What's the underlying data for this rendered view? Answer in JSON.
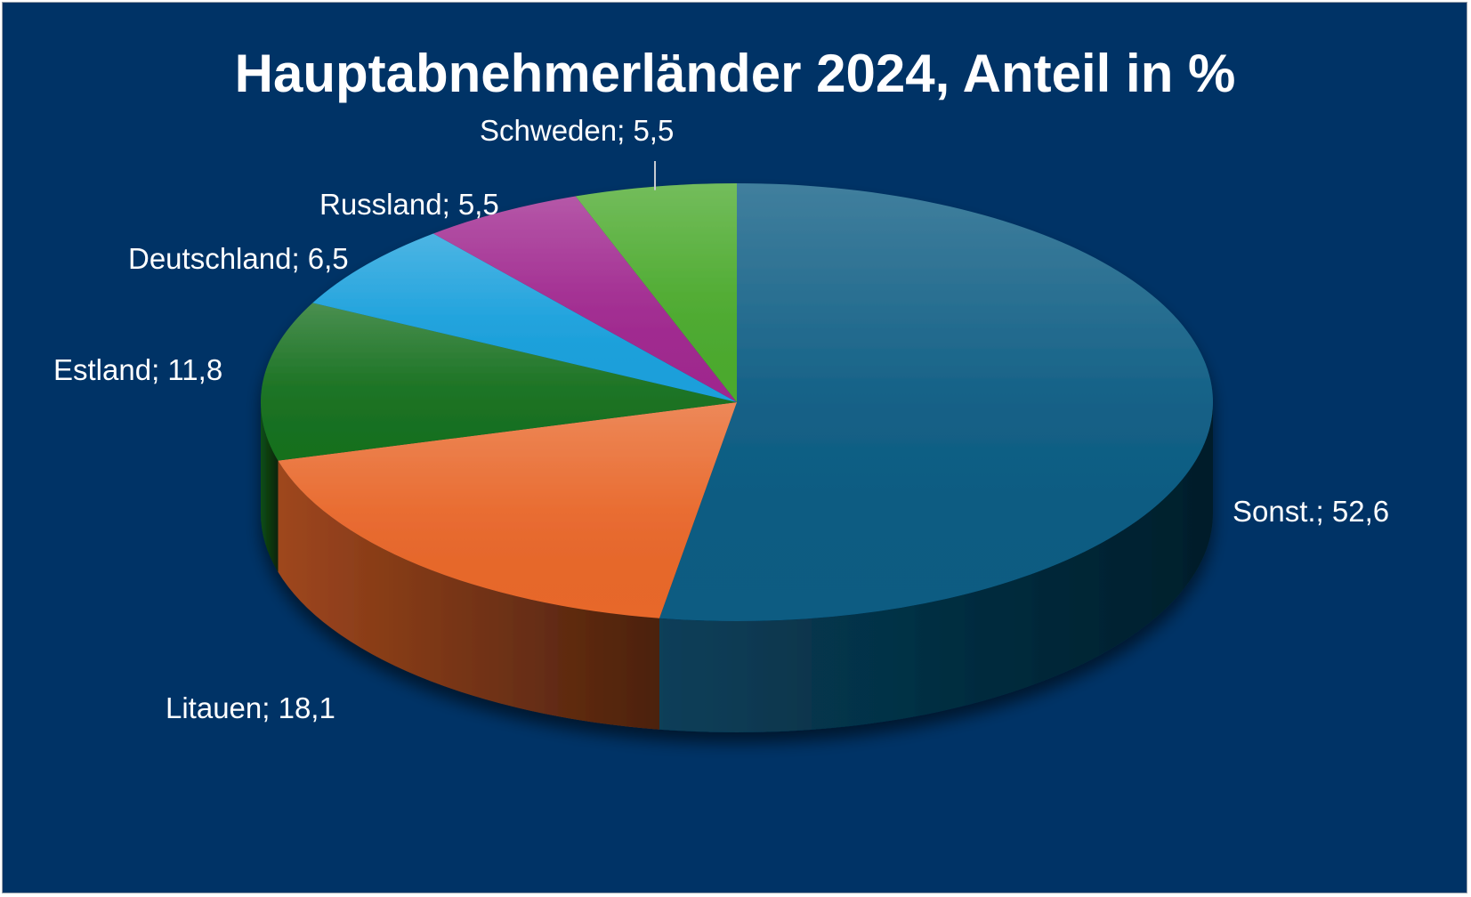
{
  "chart_data": {
    "type": "pie",
    "title": "Hauptabnehmerländer 2024, Anteil in %",
    "three_d": true,
    "legend": "none",
    "start_angle": "12 o'clock",
    "direction": "clockwise",
    "slices": [
      {
        "name": "Sonst.",
        "value": 52.6,
        "label": "Sonst.; 52,6",
        "color": "#0b5b82"
      },
      {
        "name": "Litauen",
        "value": 18.1,
        "label": "Litauen; 18,1",
        "color": "#e8672a"
      },
      {
        "name": "Estland",
        "value": 11.8,
        "label": "Estland; 11,8",
        "color": "#17701f"
      },
      {
        "name": "Deutschland",
        "value": 6.5,
        "label": "Deutschland; 6,5",
        "color": "#1aa0dc"
      },
      {
        "name": "Russland",
        "value": 5.5,
        "label": "Russland; 5,5",
        "color": "#a0288f"
      },
      {
        "name": "Schweden",
        "value": 5.5,
        "label": "Schweden; 5,5",
        "color": "#4caa2e"
      }
    ],
    "background_color": "#003366",
    "text_color": "#ffffff"
  }
}
